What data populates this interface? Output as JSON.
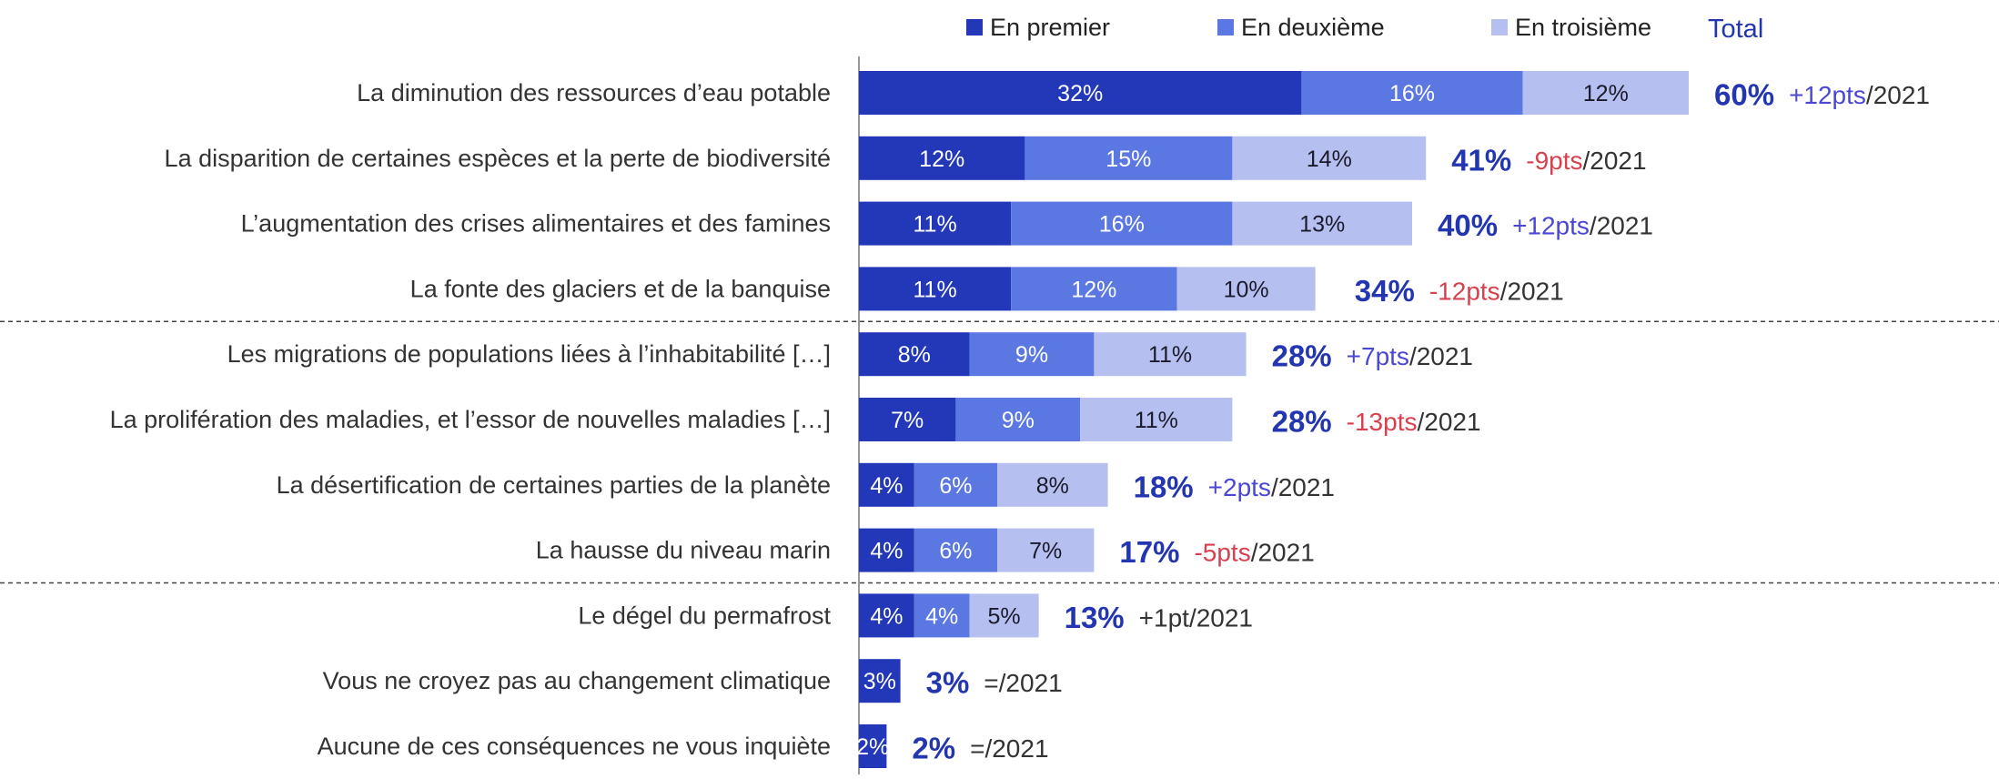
{
  "chart_data": {
    "type": "stacked-bar-horizontal",
    "categories": [
      "La diminution des ressources d’eau potable",
      "La disparition de certaines espèces et la perte de biodiversité",
      "L’augmentation des crises alimentaires et des famines",
      "La fonte des glaciers et de la banquise",
      "Les migrations de populations liées à l’inhabitabilité […]",
      "La prolifération des maladies, et l’essor de nouvelles maladies […]",
      "La désertification de certaines parties de la planète",
      "La hausse du niveau marin",
      "Le dégel du permafrost",
      "Vous ne croyez pas au changement climatique",
      "Aucune de ces conséquences ne vous inquiète"
    ],
    "series": [
      {
        "name": "En premier",
        "color": "#2338b8",
        "text_color": "#ffffff",
        "values": [
          32,
          12,
          11,
          11,
          8,
          7,
          4,
          4,
          4,
          3,
          2
        ],
        "value_labels": [
          "32%",
          "12%",
          "11%",
          "11%",
          "8%",
          "7%",
          "4%",
          "4%",
          "4%",
          "3%",
          "2%"
        ]
      },
      {
        "name": "En deuxième",
        "color": "#5b77e2",
        "text_color": "#ffffff",
        "values": [
          16,
          15,
          16,
          12,
          9,
          9,
          6,
          6,
          4,
          null,
          null
        ],
        "value_labels": [
          "16%",
          "15%",
          "16%",
          "12%",
          "9%",
          "9%",
          "6%",
          "6%",
          "4%",
          null,
          null
        ]
      },
      {
        "name": "En troisième",
        "color": "#b5c0f1",
        "text_color": "#1a1a2a",
        "values": [
          12,
          14,
          13,
          10,
          11,
          11,
          8,
          7,
          5,
          null,
          null
        ],
        "value_labels": [
          "12%",
          "14%",
          "13%",
          "10%",
          "11%",
          "11%",
          "8%",
          "7%",
          "5%",
          null,
          null
        ]
      }
    ],
    "total_label": "Total",
    "totals": [
      60,
      41,
      40,
      34,
      28,
      28,
      18,
      17,
      13,
      3,
      2
    ],
    "totals_labels": [
      "60%",
      "41%",
      "40%",
      "34%",
      "28%",
      "28%",
      "18%",
      "17%",
      "13%",
      "3%",
      "2%"
    ],
    "totals_color": "#2336b0",
    "changes": [
      {
        "delta": "+12pts",
        "ref": "/2021",
        "color": "#4a46d6"
      },
      {
        "delta": "-9pts",
        "ref": "/2021",
        "color": "#d9404f"
      },
      {
        "delta": "+12pts",
        "ref": "/2021",
        "color": "#4a46d6"
      },
      {
        "delta": "-12pts",
        "ref": "/2021",
        "color": "#d9404f"
      },
      {
        "delta": "+7pts",
        "ref": "/2021",
        "color": "#4a46d6"
      },
      {
        "delta": "-13pts",
        "ref": "/2021",
        "color": "#d9404f"
      },
      {
        "delta": "+2pts",
        "ref": "/2021",
        "color": "#4a46d6"
      },
      {
        "delta": "-5pts",
        "ref": "/2021",
        "color": "#d9404f"
      },
      {
        "delta": "+1pt",
        "ref": "/2021",
        "color": "#333333"
      },
      {
        "delta": "=",
        "ref": "/2021",
        "color": "#333333"
      },
      {
        "delta": "=",
        "ref": "/2021",
        "color": "#333333"
      }
    ],
    "group_breaks_before": [
      4,
      8
    ]
  }
}
